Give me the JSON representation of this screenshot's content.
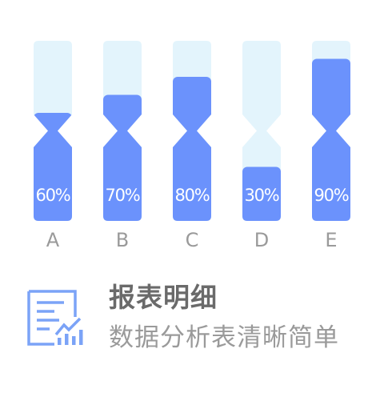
{
  "chart_data": {
    "type": "bar",
    "categories": [
      "A",
      "B",
      "C",
      "D",
      "E"
    ],
    "values": [
      60,
      70,
      80,
      30,
      90
    ],
    "value_labels": [
      "60%",
      "70%",
      "80%",
      "30%",
      "90%"
    ],
    "ylim": [
      0,
      100
    ],
    "title": "",
    "xlabel": "",
    "ylabel": "",
    "grid": false,
    "legend": "none",
    "shape": "hourglass",
    "colors": {
      "fill": "#6b92fc",
      "track": "#e3f4fc"
    }
  },
  "caption": {
    "title": "报表明细",
    "subtitle": "数据分析表清晰简单",
    "icon": "report-chart-icon",
    "icon_color": "#7ba3f7"
  }
}
